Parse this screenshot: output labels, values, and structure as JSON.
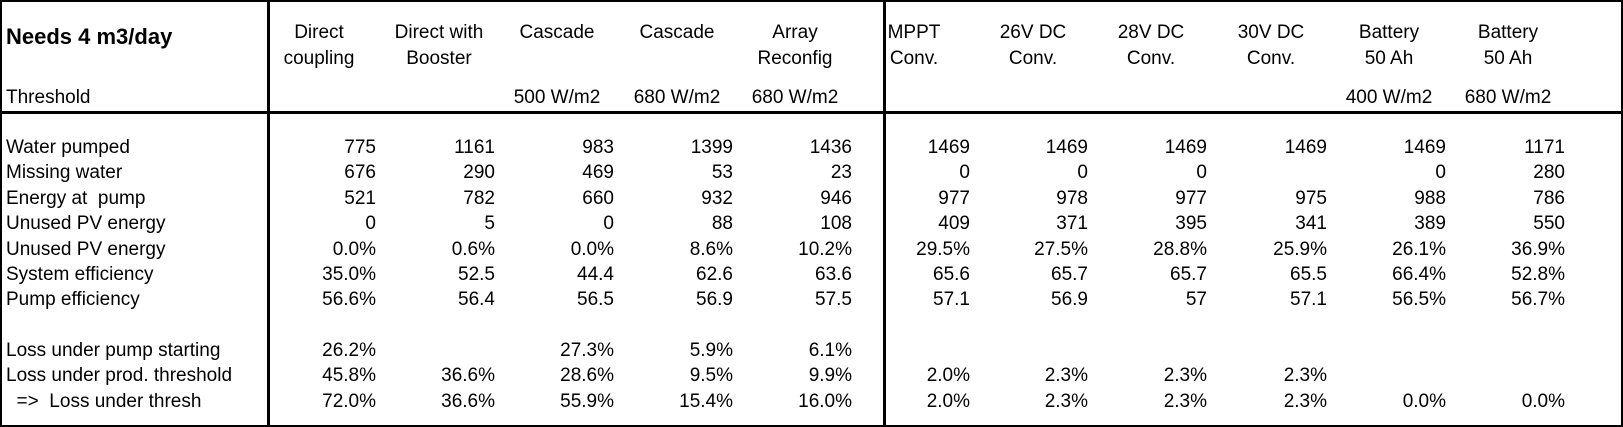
{
  "title": "Needs  4 m3/day",
  "threshold_label": "Threshold",
  "columns": [
    {
      "line1": "Direct",
      "line2": "coupling",
      "threshold": ""
    },
    {
      "line1": "Direct with",
      "line2": "Booster",
      "threshold": ""
    },
    {
      "line1": "Cascade",
      "line2": "",
      "threshold": "500 W/m2"
    },
    {
      "line1": "Cascade",
      "line2": "",
      "threshold": "680 W/m2"
    },
    {
      "line1": "Array",
      "line2": "Reconfig",
      "threshold": "680 W/m2"
    },
    {
      "line1": "MPPT",
      "line2": "Conv.",
      "threshold": ""
    },
    {
      "line1": "26V DC",
      "line2": "Conv.",
      "threshold": ""
    },
    {
      "line1": "28V DC",
      "line2": "Conv.",
      "threshold": ""
    },
    {
      "line1": "30V DC",
      "line2": "Conv.",
      "threshold": ""
    },
    {
      "line1": "Battery",
      "line2": "50 Ah",
      "threshold": "400 W/m2"
    },
    {
      "line1": "Battery",
      "line2": "50 Ah",
      "threshold": "680 W/m2"
    }
  ],
  "rows": [
    {
      "label": "Water pumped",
      "values": [
        "775",
        "1161",
        "983",
        "1399",
        "1436",
        "1469",
        "1469",
        "1469",
        "1469",
        "1469",
        "1171"
      ]
    },
    {
      "label": "Missing water",
      "values": [
        "676",
        "290",
        "469",
        "53",
        "23",
        "0",
        "0",
        "0",
        "",
        "0",
        "280"
      ]
    },
    {
      "label": "Energy at  pump",
      "values": [
        "521",
        "782",
        "660",
        "932",
        "946",
        "977",
        "978",
        "977",
        "975",
        "988",
        "786"
      ]
    },
    {
      "label": "Unused PV energy",
      "values": [
        "0",
        "5",
        "0",
        "88",
        "108",
        "409",
        "371",
        "395",
        "341",
        "389",
        "550"
      ]
    },
    {
      "label": "Unused PV energy",
      "values": [
        "0.0%",
        "0.6%",
        "0.0%",
        "8.6%",
        "10.2%",
        "29.5%",
        "27.5%",
        "28.8%",
        "25.9%",
        "26.1%",
        "36.9%"
      ]
    },
    {
      "label": "System efficiency",
      "values": [
        "35.0%",
        "52.5",
        "44.4",
        "62.6",
        "63.6",
        "65.6",
        "65.7",
        "65.7",
        "65.5",
        "66.4%",
        "52.8%"
      ]
    },
    {
      "label": "Pump efficiency",
      "values": [
        "56.6%",
        "56.4",
        "56.5",
        "56.9",
        "57.5",
        "57.1",
        "56.9",
        "57",
        "57.1",
        "56.5%",
        "56.7%"
      ]
    },
    {
      "label": "",
      "values": [
        "",
        "",
        "",
        "",
        "",
        "",
        "",
        "",
        "",
        "",
        ""
      ]
    },
    {
      "label": "Loss under pump starting",
      "values": [
        "26.2%",
        "",
        "27.3%",
        "5.9%",
        "6.1%",
        "",
        "",
        "",
        "",
        "",
        ""
      ]
    },
    {
      "label": "Loss under prod. threshold",
      "values": [
        "45.8%",
        "36.6%",
        "28.6%",
        "9.5%",
        "9.9%",
        "2.0%",
        "2.3%",
        "2.3%",
        "2.3%",
        "",
        ""
      ]
    },
    {
      "label": "  =>  Loss under thresh",
      "values": [
        "72.0%",
        "36.6%",
        "55.9%",
        "15.4%",
        "16.0%",
        "2.0%",
        "2.3%",
        "2.3%",
        "2.3%",
        "0.0%",
        "0.0%"
      ]
    }
  ]
}
